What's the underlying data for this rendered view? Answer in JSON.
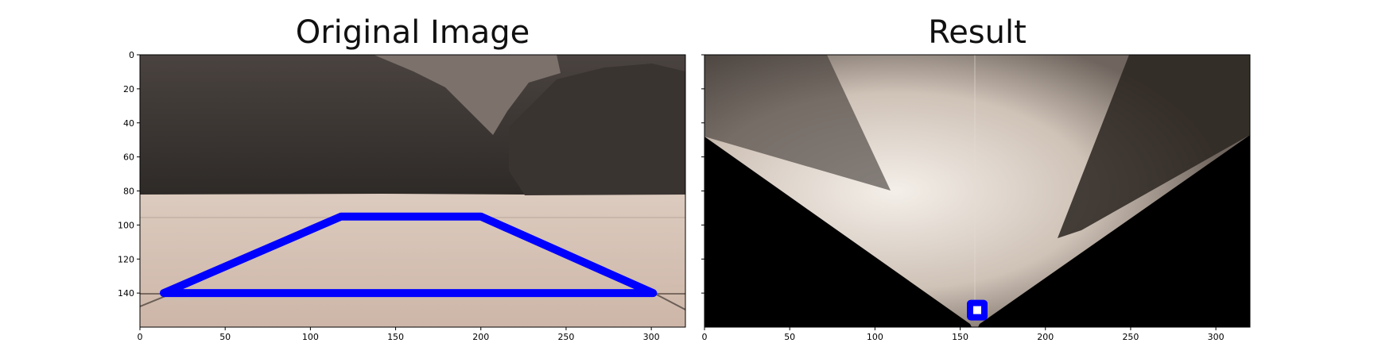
{
  "panels": [
    {
      "title": "Original Image",
      "x_ticks": [
        "0",
        "50",
        "100",
        "150",
        "200",
        "250",
        "300"
      ],
      "y_ticks": [
        "0",
        "20",
        "40",
        "60",
        "80",
        "100",
        "120",
        "140"
      ],
      "x_range": [
        0,
        320
      ],
      "y_range": [
        0,
        160
      ],
      "overlay": {
        "color": "#0000ff",
        "shape": "trapezoid",
        "points": [
          [
            14,
            140
          ],
          [
            118,
            95
          ],
          [
            200,
            95
          ],
          [
            301,
            140
          ]
        ]
      }
    },
    {
      "title": "Result",
      "x_ticks": [
        "0",
        "50",
        "100",
        "150",
        "200",
        "250",
        "300"
      ],
      "x_range": [
        0,
        320
      ],
      "y_range": [
        0,
        160
      ],
      "overlay": {
        "color": "#0000ff",
        "shape": "square-marker",
        "center": [
          160,
          150
        ]
      }
    }
  ]
}
